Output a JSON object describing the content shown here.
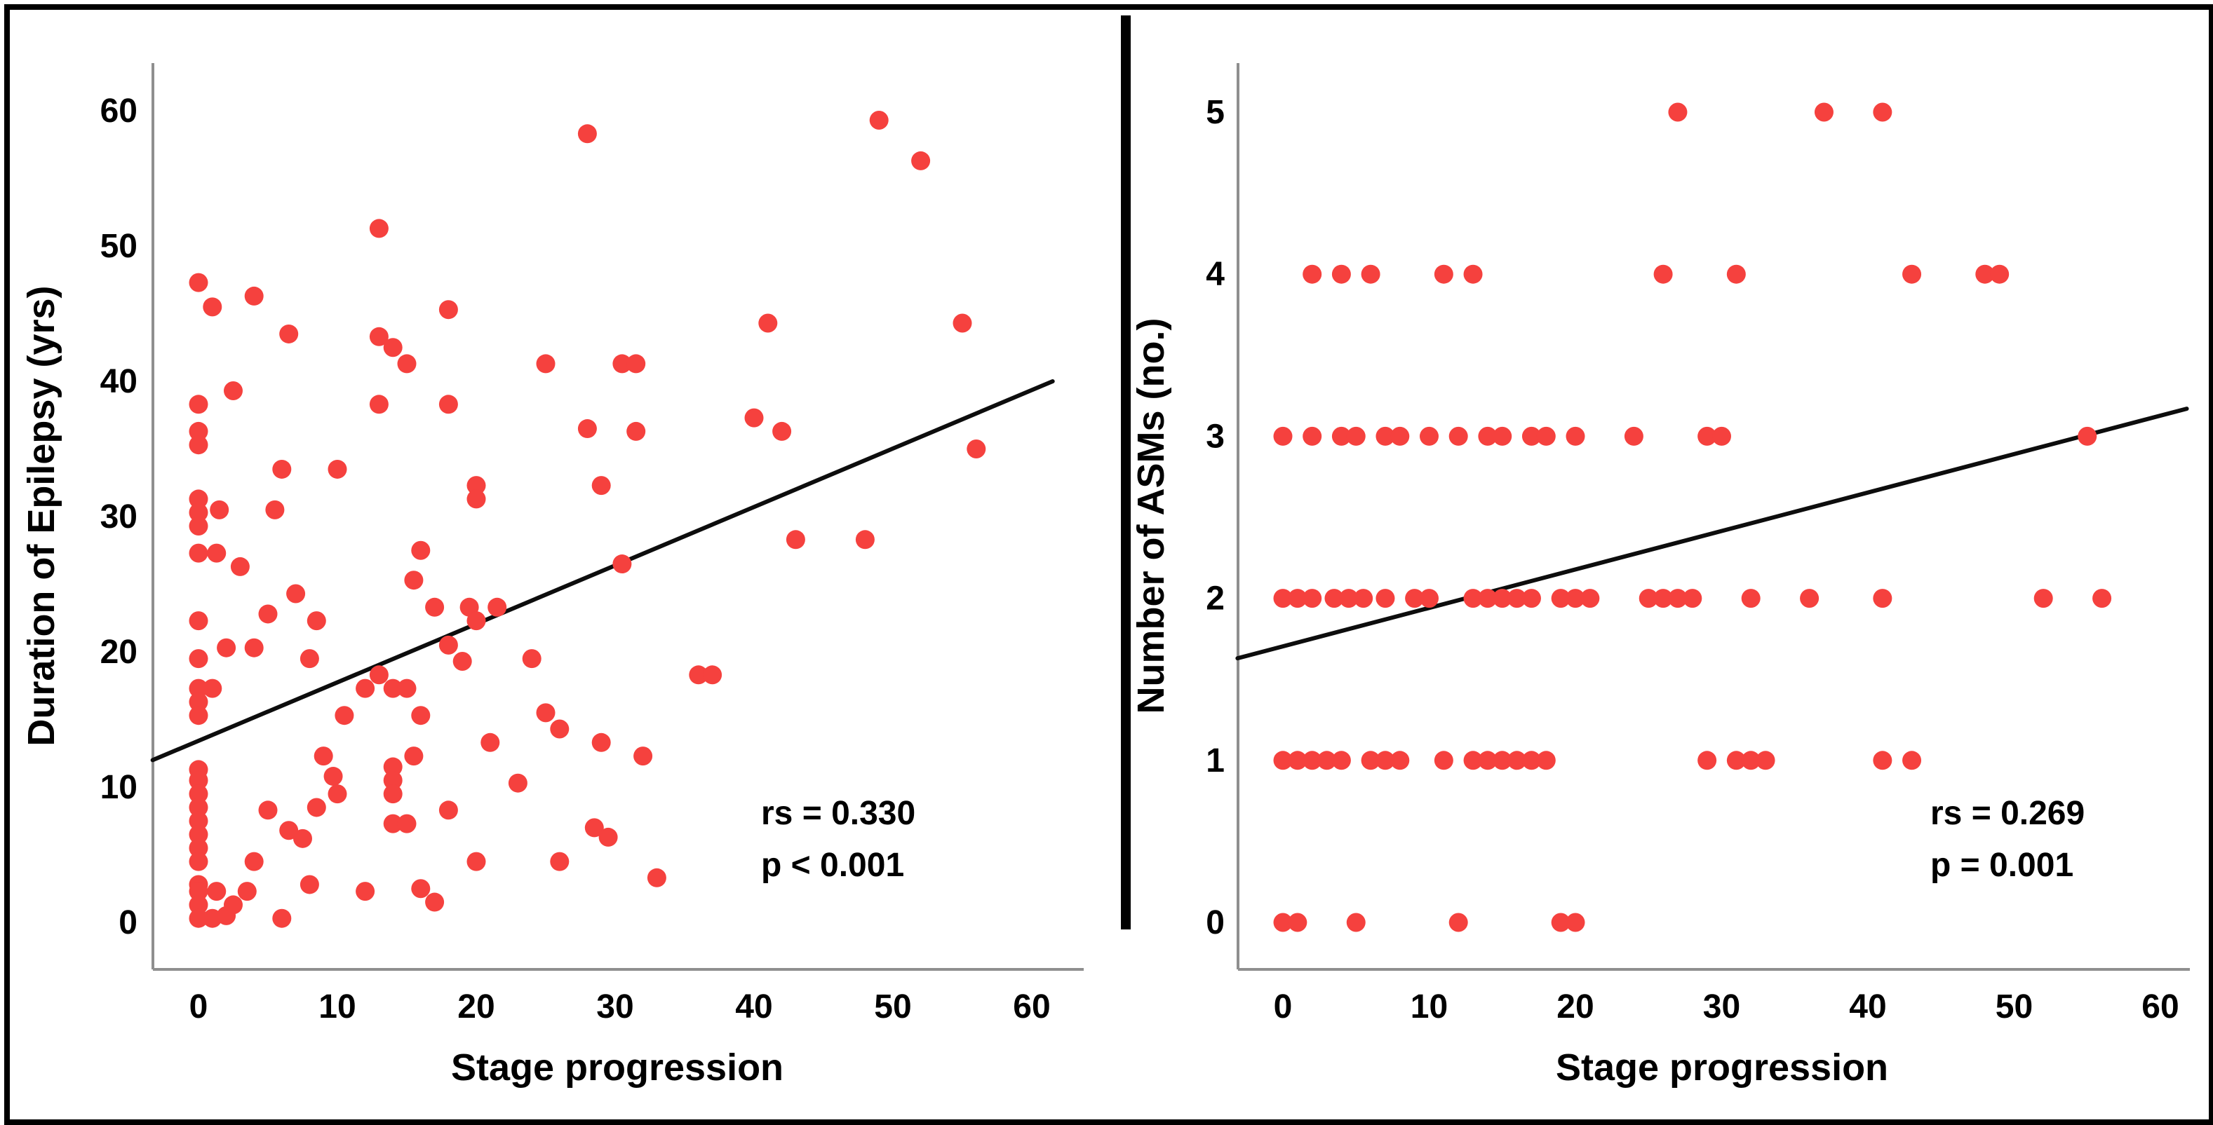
{
  "figure": {
    "background": "#ffffff",
    "border_color": "#000000",
    "dot_color": "#f5413e",
    "trend_color": "#0d0d0d",
    "axis_color": "#8f8f8f",
    "text_color": "#000000"
  },
  "chart_data": [
    {
      "type": "scatter",
      "title": "",
      "xlabel": "Stage progression",
      "ylabel": "Duration of Epilepsy (yrs)",
      "xlim": [
        -3.3,
        63.5
      ],
      "ylim": [
        -3.5,
        63.5
      ],
      "grid": false,
      "x_ticks": [
        0,
        10,
        20,
        30,
        40,
        50,
        60
      ],
      "y_ticks": [
        0,
        10,
        20,
        30,
        40,
        50,
        60
      ],
      "legend": "none",
      "stats": {
        "rs": "0.330",
        "p": "< 0.001"
      },
      "annotation": {
        "line1": "rs = 0.330",
        "line2": "p < 0.001"
      },
      "trend": {
        "x1": -3.3,
        "y1": 12.0,
        "x2": 61.5,
        "y2": 40.0
      },
      "points": [
        [
          0,
          47.3
        ],
        [
          0,
          38.3
        ],
        [
          0,
          36.3
        ],
        [
          0,
          35.3
        ],
        [
          0,
          31.3
        ],
        [
          0,
          30.3
        ],
        [
          0,
          29.3
        ],
        [
          0,
          27.3
        ],
        [
          0,
          22.3
        ],
        [
          0,
          19.5
        ],
        [
          0,
          17.3
        ],
        [
          0,
          16.3
        ],
        [
          0,
          15.3
        ],
        [
          0,
          11.3
        ],
        [
          0,
          10.5
        ],
        [
          0,
          9.5
        ],
        [
          0,
          8.5
        ],
        [
          0,
          7.5
        ],
        [
          0,
          6.5
        ],
        [
          0,
          5.5
        ],
        [
          0,
          4.5
        ],
        [
          0,
          2.8
        ],
        [
          0,
          2.3
        ],
        [
          0,
          1.3
        ],
        [
          0,
          0.3
        ],
        [
          1,
          45.5
        ],
        [
          1.5,
          30.5
        ],
        [
          1.3,
          27.3
        ],
        [
          2,
          20.3
        ],
        [
          1,
          17.3
        ],
        [
          1.3,
          2.3
        ],
        [
          2.5,
          1.3
        ],
        [
          1,
          0.3
        ],
        [
          2,
          0.5
        ],
        [
          2.5,
          39.3
        ],
        [
          4,
          46.3
        ],
        [
          6.5,
          43.5
        ],
        [
          6,
          33.5
        ],
        [
          5.5,
          30.5
        ],
        [
          3,
          26.3
        ],
        [
          7,
          24.3
        ],
        [
          5,
          22.8
        ],
        [
          4,
          20.3
        ],
        [
          8,
          19.5
        ],
        [
          8.5,
          22.3
        ],
        [
          5,
          8.3
        ],
        [
          6.5,
          6.8
        ],
        [
          7.5,
          6.2
        ],
        [
          4,
          4.5
        ],
        [
          3.5,
          2.3
        ],
        [
          6,
          0.3
        ],
        [
          8,
          2.8
        ],
        [
          8.5,
          8.5
        ],
        [
          9.7,
          10.8
        ],
        [
          10,
          9.5
        ],
        [
          9,
          12.3
        ],
        [
          10.5,
          15.3
        ],
        [
          13,
          51.3
        ],
        [
          13,
          43.3
        ],
        [
          14,
          42.5
        ],
        [
          15,
          41.3
        ],
        [
          18,
          45.3
        ],
        [
          10,
          33.5
        ],
        [
          13,
          38.3
        ],
        [
          18,
          38.3
        ],
        [
          16,
          27.5
        ],
        [
          15.5,
          25.3
        ],
        [
          17,
          23.3
        ],
        [
          19.5,
          23.3
        ],
        [
          20,
          22.3
        ],
        [
          21.5,
          23.3
        ],
        [
          18,
          20.5
        ],
        [
          19,
          19.3
        ],
        [
          12,
          17.3
        ],
        [
          14,
          17.3
        ],
        [
          15,
          17.3
        ],
        [
          13,
          18.3
        ],
        [
          14,
          11.5
        ],
        [
          14,
          10.5
        ],
        [
          14,
          9.5
        ],
        [
          15.5,
          12.3
        ],
        [
          16,
          15.3
        ],
        [
          14,
          7.3
        ],
        [
          15,
          7.3
        ],
        [
          18,
          8.3
        ],
        [
          16,
          2.5
        ],
        [
          17,
          1.5
        ],
        [
          20,
          4.5
        ],
        [
          12,
          2.3
        ],
        [
          20,
          32.3
        ],
        [
          20,
          31.3
        ],
        [
          24,
          19.5
        ],
        [
          25,
          15.5
        ],
        [
          26,
          14.3
        ],
        [
          21,
          13.3
        ],
        [
          23,
          10.3
        ],
        [
          26,
          4.5
        ],
        [
          28.5,
          7
        ],
        [
          29.5,
          6.3
        ],
        [
          29,
          13.3
        ],
        [
          33,
          3.3
        ],
        [
          32,
          12.3
        ],
        [
          29,
          32.3
        ],
        [
          25,
          41.3
        ],
        [
          28,
          36.5
        ],
        [
          28,
          58.3
        ],
        [
          49,
          59.3
        ],
        [
          52,
          56.3
        ],
        [
          30.5,
          41.3
        ],
        [
          31.5,
          41.3
        ],
        [
          31.5,
          36.3
        ],
        [
          40,
          37.3
        ],
        [
          42,
          36.3
        ],
        [
          41,
          44.3
        ],
        [
          55,
          44.3
        ],
        [
          56,
          35
        ],
        [
          30.5,
          26.5
        ],
        [
          43,
          28.3
        ],
        [
          48,
          28.3
        ],
        [
          36,
          18.3
        ],
        [
          37,
          18.3
        ]
      ]
    },
    {
      "type": "scatter",
      "title": "",
      "xlabel": "Stage progression",
      "ylabel": "Number of ASMs (no.)",
      "xlim": [
        -3.1,
        62
      ],
      "ylim": [
        -0.3,
        5.3
      ],
      "grid": false,
      "x_ticks": [
        0,
        10,
        20,
        30,
        40,
        50,
        60
      ],
      "y_ticks": [
        0,
        1,
        2,
        3,
        4,
        5
      ],
      "legend": "none",
      "stats": {
        "rs": "0.269",
        "p": "= 0.001"
      },
      "annotation": {
        "line1": "rs = 0.269",
        "line2": "p = 0.001"
      },
      "trend": {
        "x1": -3.1,
        "y1": 1.63,
        "x2": 61.8,
        "y2": 3.17
      },
      "points": [
        [
          27,
          5
        ],
        [
          37,
          5
        ],
        [
          41,
          5
        ],
        [
          2,
          4
        ],
        [
          4,
          4
        ],
        [
          6,
          4
        ],
        [
          11,
          4
        ],
        [
          13,
          4
        ],
        [
          26,
          4
        ],
        [
          31,
          4
        ],
        [
          43,
          4
        ],
        [
          48,
          4
        ],
        [
          49,
          4
        ],
        [
          0,
          3
        ],
        [
          2,
          3
        ],
        [
          4,
          3
        ],
        [
          5,
          3
        ],
        [
          7,
          3
        ],
        [
          8,
          3
        ],
        [
          10,
          3
        ],
        [
          12,
          3
        ],
        [
          14,
          3
        ],
        [
          15,
          3
        ],
        [
          17,
          3
        ],
        [
          18,
          3
        ],
        [
          20,
          3
        ],
        [
          24,
          3
        ],
        [
          29,
          3
        ],
        [
          30,
          3
        ],
        [
          55,
          3
        ],
        [
          0,
          2
        ],
        [
          1,
          2
        ],
        [
          2,
          2
        ],
        [
          3.5,
          2
        ],
        [
          4.5,
          2
        ],
        [
          5.5,
          2
        ],
        [
          7,
          2
        ],
        [
          9,
          2
        ],
        [
          10,
          2
        ],
        [
          13,
          2
        ],
        [
          14,
          2
        ],
        [
          15,
          2
        ],
        [
          16,
          2
        ],
        [
          17,
          2
        ],
        [
          19,
          2
        ],
        [
          20,
          2
        ],
        [
          21,
          2
        ],
        [
          25,
          2
        ],
        [
          26,
          2
        ],
        [
          27,
          2
        ],
        [
          28,
          2
        ],
        [
          32,
          2
        ],
        [
          36,
          2
        ],
        [
          41,
          2
        ],
        [
          52,
          2
        ],
        [
          56,
          2
        ],
        [
          0,
          1
        ],
        [
          1,
          1
        ],
        [
          2,
          1
        ],
        [
          3,
          1
        ],
        [
          4,
          1
        ],
        [
          6,
          1
        ],
        [
          7,
          1
        ],
        [
          8,
          1
        ],
        [
          11,
          1
        ],
        [
          13,
          1
        ],
        [
          14,
          1
        ],
        [
          15,
          1
        ],
        [
          16,
          1
        ],
        [
          17,
          1
        ],
        [
          18,
          1
        ],
        [
          29,
          1
        ],
        [
          31,
          1
        ],
        [
          32,
          1
        ],
        [
          33,
          1
        ],
        [
          41,
          1
        ],
        [
          43,
          1
        ],
        [
          0,
          0
        ],
        [
          1,
          0
        ],
        [
          5,
          0
        ],
        [
          12,
          0
        ],
        [
          19,
          0
        ],
        [
          20,
          0
        ]
      ]
    }
  ]
}
